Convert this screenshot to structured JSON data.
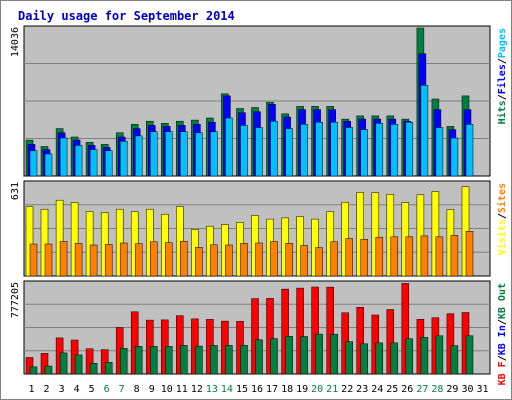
{
  "colors": {
    "background": "#ffffff",
    "frame": "#000000",
    "panel": "#c0c0c0",
    "title": "#0000c0",
    "hits": "#008040",
    "files": "#0000ff",
    "pages": "#00c0ff",
    "visits": "#ffff00",
    "sites": "#ff8000",
    "kbf": "#ff0000",
    "kbin": "#0000ff",
    "kbout": "#008040",
    "weekend_day_label": "#008040",
    "day_label": "#000000"
  },
  "chart_data": {
    "type": "bar",
    "title": "Daily usage for September 2014",
    "categories": [
      "1",
      "2",
      "3",
      "4",
      "5",
      "6",
      "7",
      "8",
      "9",
      "10",
      "11",
      "12",
      "13",
      "14",
      "15",
      "16",
      "17",
      "18",
      "19",
      "20",
      "21",
      "22",
      "23",
      "24",
      "25",
      "26",
      "27",
      "28",
      "29",
      "30",
      "31"
    ],
    "weekend_days": [
      "6",
      "7",
      "13",
      "14",
      "20",
      "21",
      "27",
      "28"
    ],
    "grid": true,
    "panels": [
      {
        "id": "hits-files-pages",
        "axis_max_label": "14036",
        "ylim": [
          0,
          14036
        ],
        "legend": [
          {
            "text": "Hits",
            "color_key": "hits"
          },
          {
            "text": "/",
            "color_key": "frame"
          },
          {
            "text": "Files",
            "color_key": "files"
          },
          {
            "text": "/",
            "color_key": "frame"
          },
          {
            "text": "Pages",
            "color_key": "pages"
          }
        ],
        "series": [
          {
            "name": "Hits",
            "color_key": "hits",
            "values": [
              3400,
              2800,
              4500,
              3700,
              3200,
              3000,
              4100,
              4900,
              5200,
              5000,
              5200,
              5300,
              5500,
              7800,
              6400,
              6500,
              7000,
              5900,
              6600,
              6600,
              6600,
              5400,
              5700,
              5700,
              5700,
              5400,
              14036,
              7300,
              4700,
              7600,
              0
            ]
          },
          {
            "name": "Files",
            "color_key": "files",
            "values": [
              3000,
              2500,
              4100,
              3400,
              2900,
              2700,
              3700,
              4500,
              4800,
              4700,
              4800,
              4900,
              5100,
              7600,
              6000,
              6100,
              6800,
              5600,
              6300,
              6300,
              6300,
              5200,
              5400,
              5400,
              5400,
              5200,
              11600,
              6300,
              4400,
              6300,
              0
            ]
          },
          {
            "name": "Pages",
            "color_key": "pages",
            "values": [
              2400,
              2100,
              3600,
              2900,
              2500,
              2400,
              3300,
              3800,
              4200,
              4200,
              4200,
              4100,
              4200,
              5500,
              4800,
              4600,
              5200,
              4500,
              4900,
              5100,
              5100,
              4600,
              4400,
              5000,
              4900,
              5100,
              8600,
              4600,
              3600,
              4900,
              0
            ]
          }
        ]
      },
      {
        "id": "visits-sites",
        "axis_max_label": "631",
        "ylim": [
          0,
          631
        ],
        "legend": [
          {
            "text": "Visits",
            "color_key": "visits"
          },
          {
            "text": "/",
            "color_key": "frame"
          },
          {
            "text": "Sites",
            "color_key": "sites"
          }
        ],
        "series": [
          {
            "name": "Visits",
            "color_key": "visits",
            "values": [
              470,
              453,
              514,
              499,
              438,
              431,
              453,
              436,
              453,
              419,
              471,
              317,
              338,
              349,
              364,
              411,
              386,
              394,
              403,
              386,
              437,
              501,
              567,
              565,
              554,
              498,
              551,
              573,
              451,
              606,
              0
            ]
          },
          {
            "name": "Sites",
            "color_key": "sites",
            "values": [
              217,
              217,
              234,
              222,
              210,
              214,
              224,
              219,
              232,
              226,
              236,
              195,
              212,
              210,
              221,
              224,
              234,
              222,
              207,
              193,
              233,
              254,
              249,
              263,
              266,
              266,
              272,
              266,
              276,
              303,
              0
            ]
          }
        ]
      },
      {
        "id": "kbytes",
        "axis_max_label": "777205",
        "ylim": [
          0,
          777205
        ],
        "legend": [
          {
            "text": "KB F",
            "color_key": "kbf"
          },
          {
            "text": "/",
            "color_key": "frame"
          },
          {
            "text": "KB In",
            "color_key": "kbin"
          },
          {
            "text": "/",
            "color_key": "frame"
          },
          {
            "text": "KB Out",
            "color_key": "kbout"
          }
        ],
        "series": [
          {
            "name": "KB F",
            "color_key": "kbf",
            "values": [
              141000,
              176000,
              308000,
              290000,
              216000,
              208000,
              397000,
              531000,
              460000,
              462000,
              498000,
              471000,
              466000,
              452000,
              450000,
              644000,
              646000,
              725000,
              734000,
              743000,
              742000,
              523000,
              570000,
              504000,
              551000,
              774000,
              467000,
              481000,
              515000,
              525000,
              0
            ]
          },
          {
            "name": "KB Out",
            "color_key": "kbout",
            "values": [
              61000,
              68000,
              180000,
              163000,
              91000,
              100000,
              219000,
              236000,
              236000,
              236000,
              244000,
              238000,
              244000,
              244000,
              244000,
              292000,
              302000,
              322000,
              320000,
              341000,
              340000,
              277000,
              258000,
              266000,
              266000,
              301000,
              313000,
              326000,
              242000,
              326000,
              0
            ]
          }
        ]
      }
    ]
  }
}
